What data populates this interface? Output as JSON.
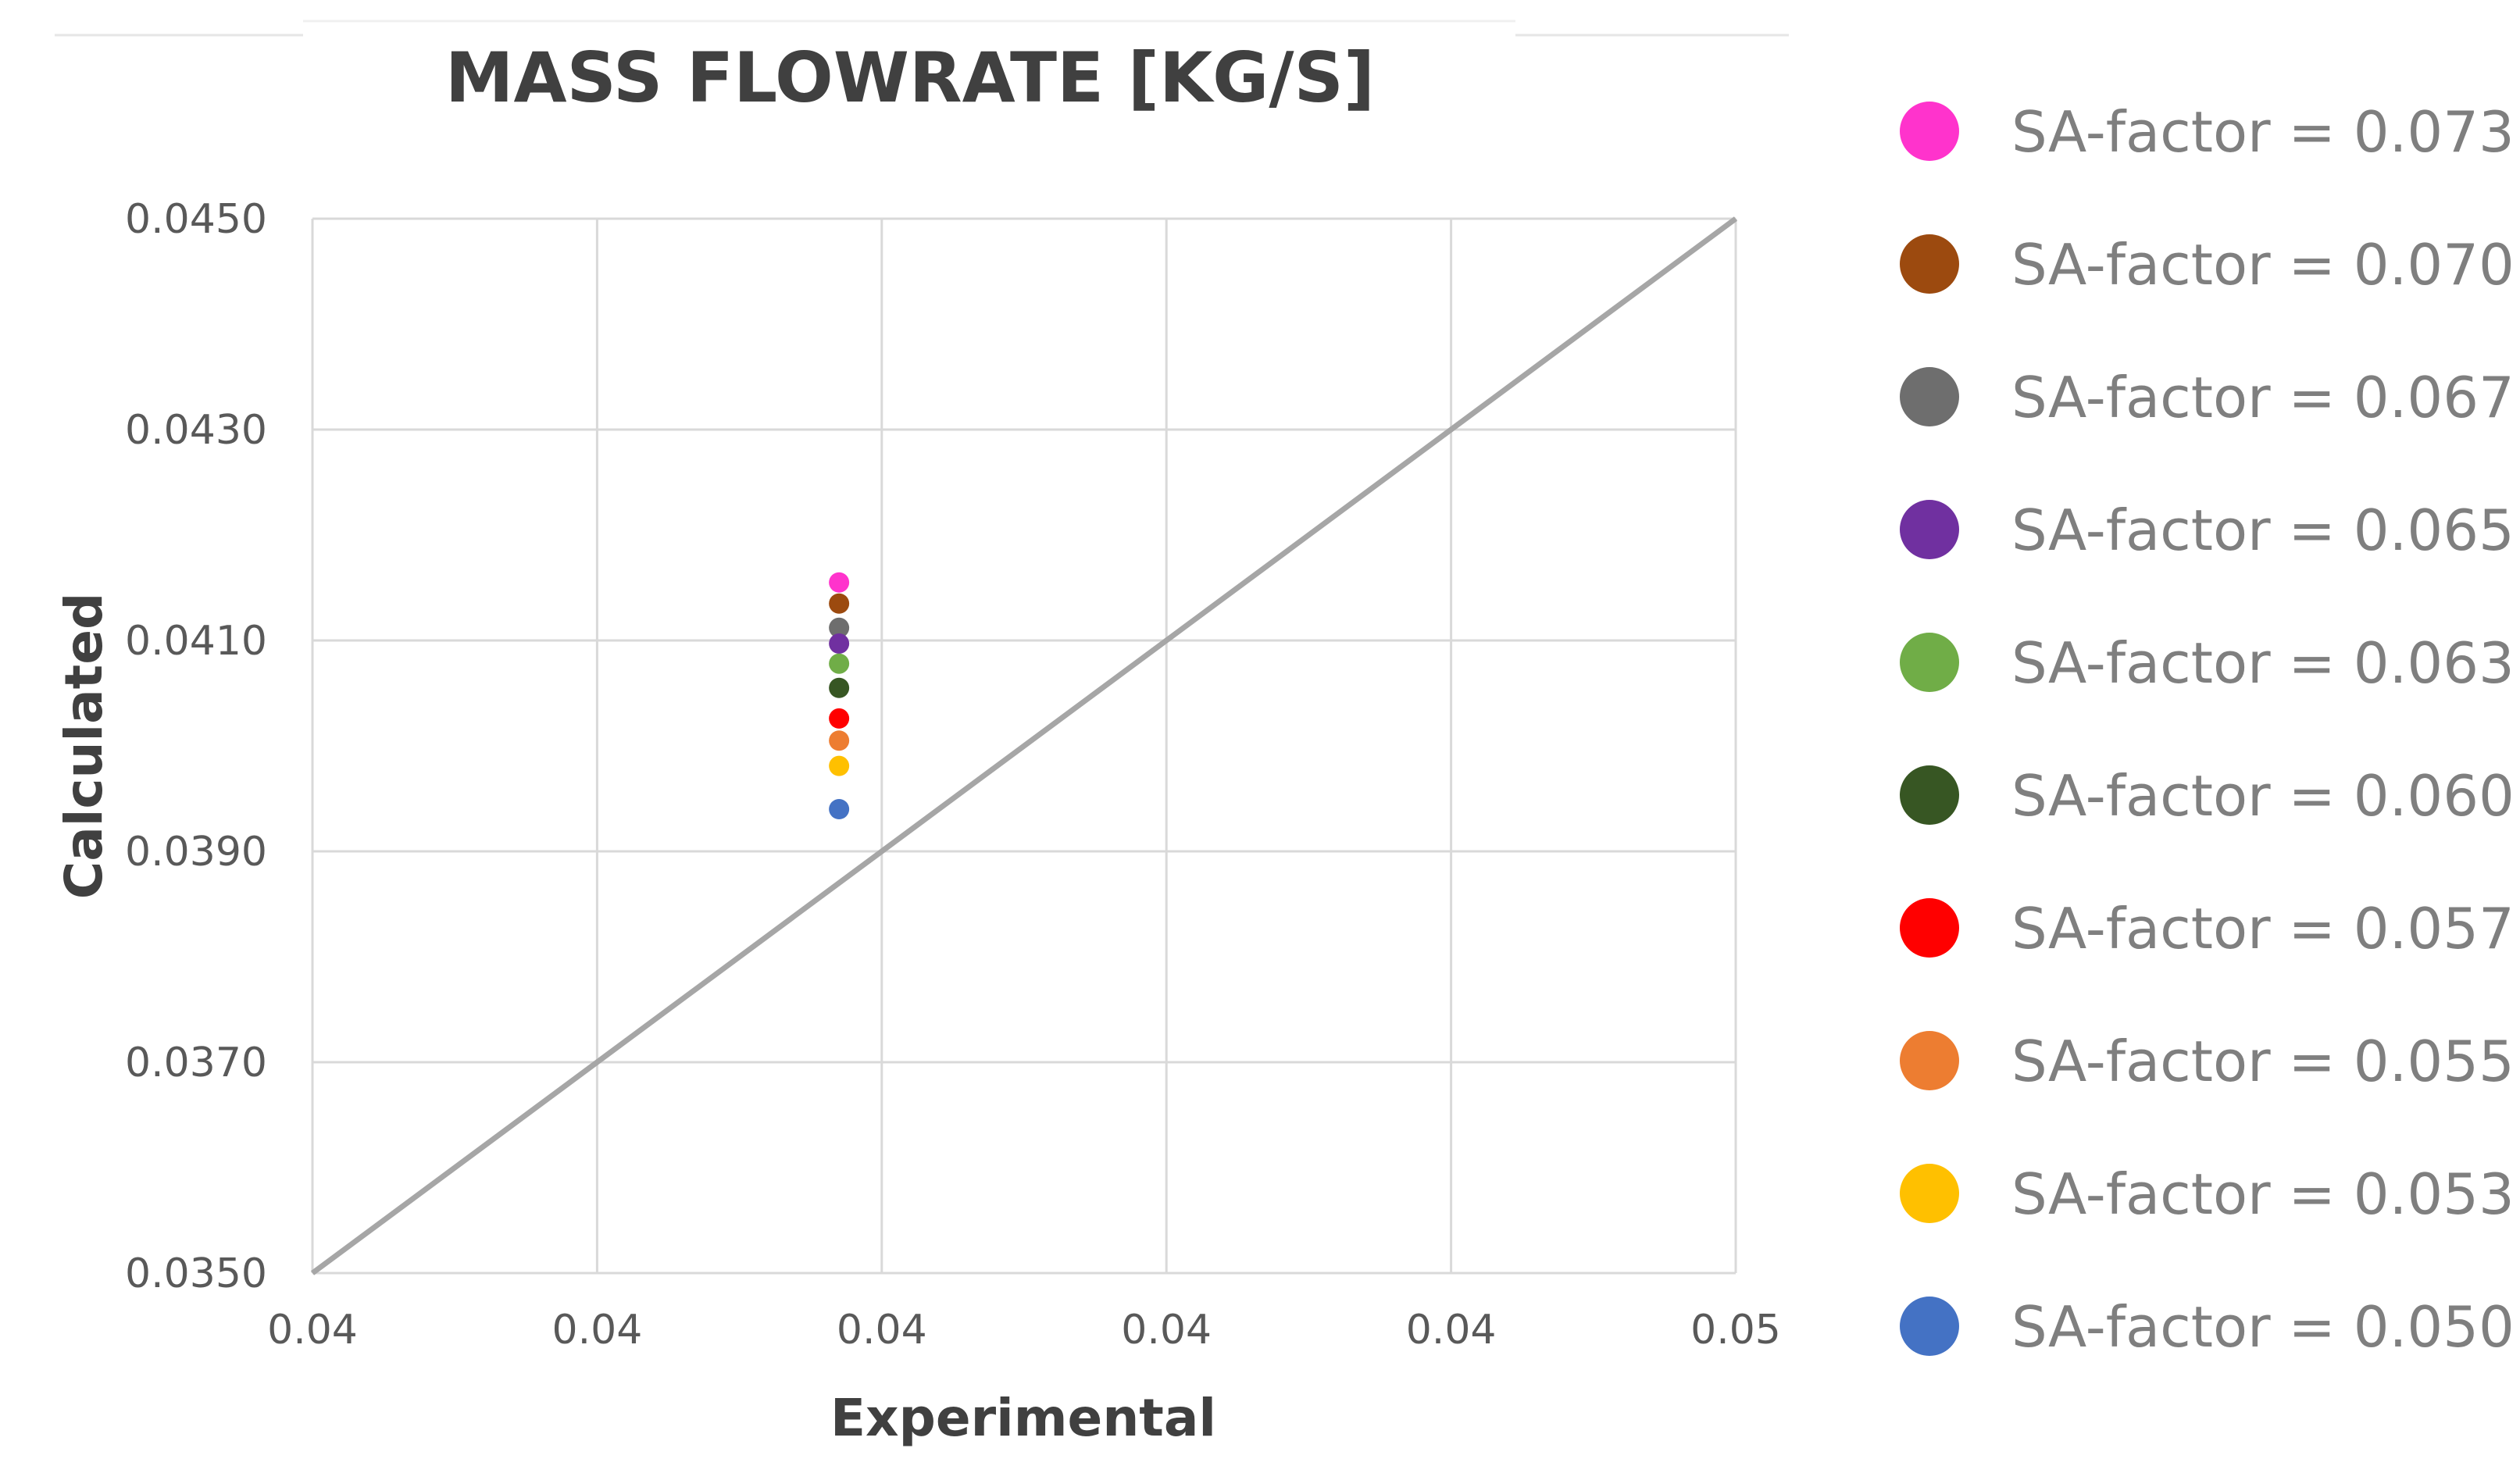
{
  "chart_data": {
    "type": "scatter",
    "title": "MASS FLOWRATE [KG/S]",
    "xlabel": "Experimental",
    "ylabel": "Calculated",
    "xlim": [
      0.035,
      0.045
    ],
    "ylim": [
      0.035,
      0.045
    ],
    "x_tick_labels": [
      "0.04",
      "0.04",
      "0.04",
      "0.04",
      "0.04",
      "0.05"
    ],
    "y_tick_labels": [
      "0.0350",
      "0.0370",
      "0.0390",
      "0.0410",
      "0.0430",
      "0.0450"
    ],
    "grid": true,
    "legend_position": "right",
    "reference_line": {
      "points": [
        [
          0.035,
          0.035
        ],
        [
          0.045,
          0.045
        ]
      ],
      "color": "#a6a6a6"
    },
    "series": [
      {
        "name": "SA-factor = 0.073",
        "color": "#ff33cc",
        "x": [
          0.0387
        ],
        "y": [
          0.04155
        ]
      },
      {
        "name": "SA-factor = 0.070",
        "color": "#9c4a0f",
        "x": [
          0.0387
        ],
        "y": [
          0.04135
        ]
      },
      {
        "name": "SA-factor = 0.067",
        "color": "#6e6e6e",
        "x": [
          0.0387
        ],
        "y": [
          0.04112
        ]
      },
      {
        "name": "SA-factor = 0.065",
        "color": "#7030a0",
        "x": [
          0.0387
        ],
        "y": [
          0.04097
        ]
      },
      {
        "name": "SA-factor = 0.063",
        "color": "#70ad47",
        "x": [
          0.0387
        ],
        "y": [
          0.04078
        ]
      },
      {
        "name": "SA-factor = 0.060",
        "color": "#375623",
        "x": [
          0.0387
        ],
        "y": [
          0.04055
        ]
      },
      {
        "name": "SA-factor = 0.057",
        "color": "#ff0000",
        "x": [
          0.0387
        ],
        "y": [
          0.04026
        ]
      },
      {
        "name": "SA-factor = 0.055",
        "color": "#ed7d31",
        "x": [
          0.0387
        ],
        "y": [
          0.04005
        ]
      },
      {
        "name": "SA-factor = 0.053",
        "color": "#ffc000",
        "x": [
          0.0387
        ],
        "y": [
          0.03981
        ]
      },
      {
        "name": "SA-factor = 0.050",
        "color": "#4472c4",
        "x": [
          0.0387
        ],
        "y": [
          0.0394
        ]
      }
    ]
  }
}
